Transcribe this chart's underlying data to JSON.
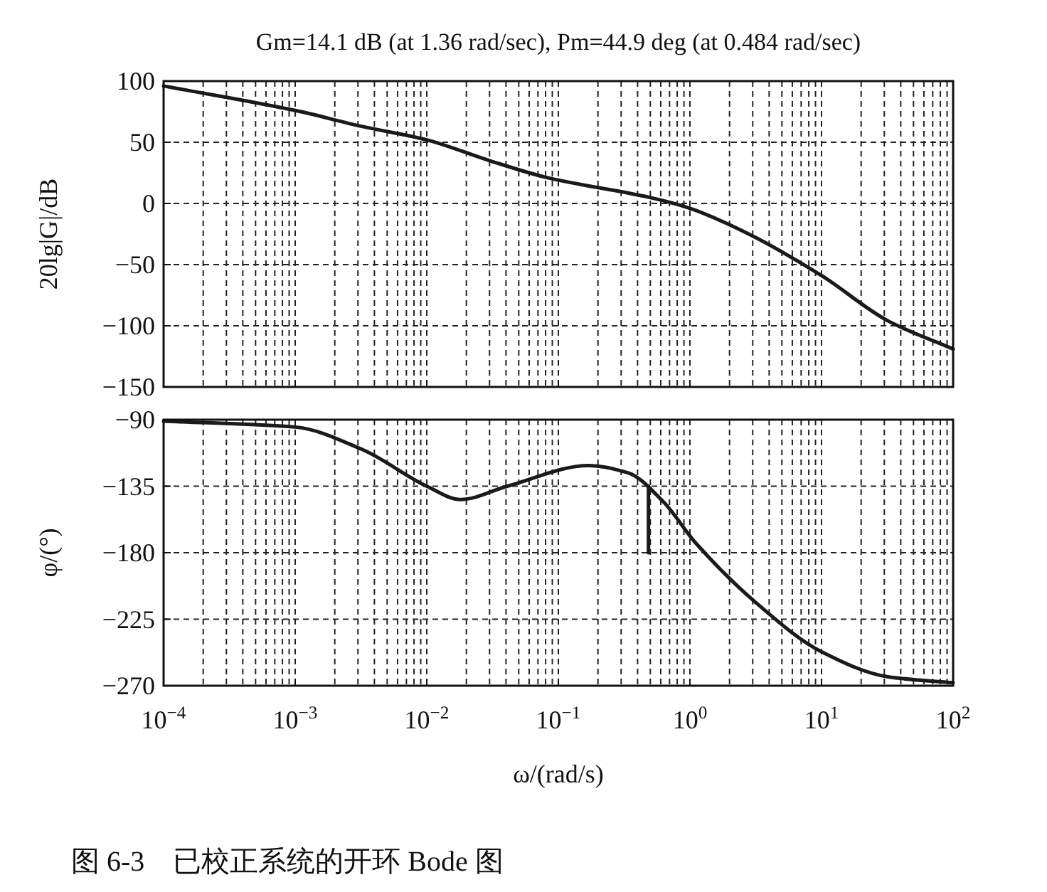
{
  "chart_data": [
    {
      "type": "line",
      "title": "Gm=14.1 dB (at 1.36 rad/sec), Pm=44.9 deg (at 0.484 rad/sec)",
      "ylabel": "20lg|G|/dB",
      "log": "x",
      "grid": true,
      "tick_labels": "y",
      "marker": "none",
      "line_style": "solid",
      "xlim": [
        0.0001,
        100
      ],
      "xticks": [
        {
          "value": 0.0001,
          "label": null
        },
        {
          "value": 0.001,
          "label": null
        },
        {
          "value": 0.01,
          "label": null
        },
        {
          "value": 0.1,
          "label": null
        },
        {
          "value": 1,
          "label": null
        },
        {
          "value": 10,
          "label": null
        },
        {
          "value": 100,
          "label": null
        }
      ],
      "ylim": [
        -150,
        100
      ],
      "yticks": [
        {
          "value": -150,
          "label": "−150"
        },
        {
          "value": -100,
          "label": "−100"
        },
        {
          "value": -50,
          "label": "−50"
        },
        0,
        50,
        100
      ],
      "series": [
        {
          "color": "#1a1a1a",
          "x": [
            0.0001,
            0.001,
            0.0032,
            0.01,
            0.03,
            0.083,
            0.49,
            1.0,
            2.8,
            10,
            32,
            100
          ],
          "values": [
            96,
            76,
            63,
            52,
            35,
            21,
            5,
            -4,
            -25,
            -59,
            -96,
            -119
          ]
        }
      ]
    },
    {
      "type": "line",
      "xlabel": "ω/(rad/s)",
      "ylabel": "φ/(°)",
      "log": "x",
      "grid": true,
      "marker": "none",
      "line_style": "solid",
      "xlim": [
        0.0001,
        100
      ],
      "xticks": [
        {
          "value": 0.0001,
          "label": "10$^{−4}$"
        },
        {
          "value": 0.001,
          "label": "10$^{−3}$"
        },
        {
          "value": 0.01,
          "label": "10$^{−2}$"
        },
        {
          "value": 0.1,
          "label": "10$^{−1}$"
        },
        {
          "value": 1,
          "label": "10$^{0}$"
        },
        {
          "value": 10,
          "label": "10$^{1}$"
        },
        {
          "value": 100,
          "label": "10$^{2}$"
        }
      ],
      "ylim": [
        -270,
        -90
      ],
      "yticks": [
        {
          "value": -270,
          "label": "−270"
        },
        {
          "value": -225,
          "label": "−225"
        },
        {
          "value": -180,
          "label": "−180"
        },
        {
          "value": -135,
          "label": "−135"
        },
        {
          "value": -90,
          "label": "−90"
        }
      ],
      "annotations": [
        "图 6-3　已校正系统的开环 Bode 图"
      ],
      "series": [
        {
          "color": "#1a1a1a",
          "x": [
            0.0001,
            0.001,
            0.0032,
            0.01,
            0.018,
            0.041,
            0.17,
            0.34,
            0.62,
            1.12,
            3.1,
            10,
            32,
            100
          ],
          "values": [
            -91,
            -95,
            -110,
            -135,
            -144,
            -135,
            -121,
            -126,
            -145,
            -174,
            -213,
            -247,
            -264,
            -268
          ]
        },
        {
          "color": "#1a1a1a",
          "x": [
            0.484,
            0.484
          ],
          "values": [
            -180,
            -135
          ]
        }
      ]
    }
  ]
}
